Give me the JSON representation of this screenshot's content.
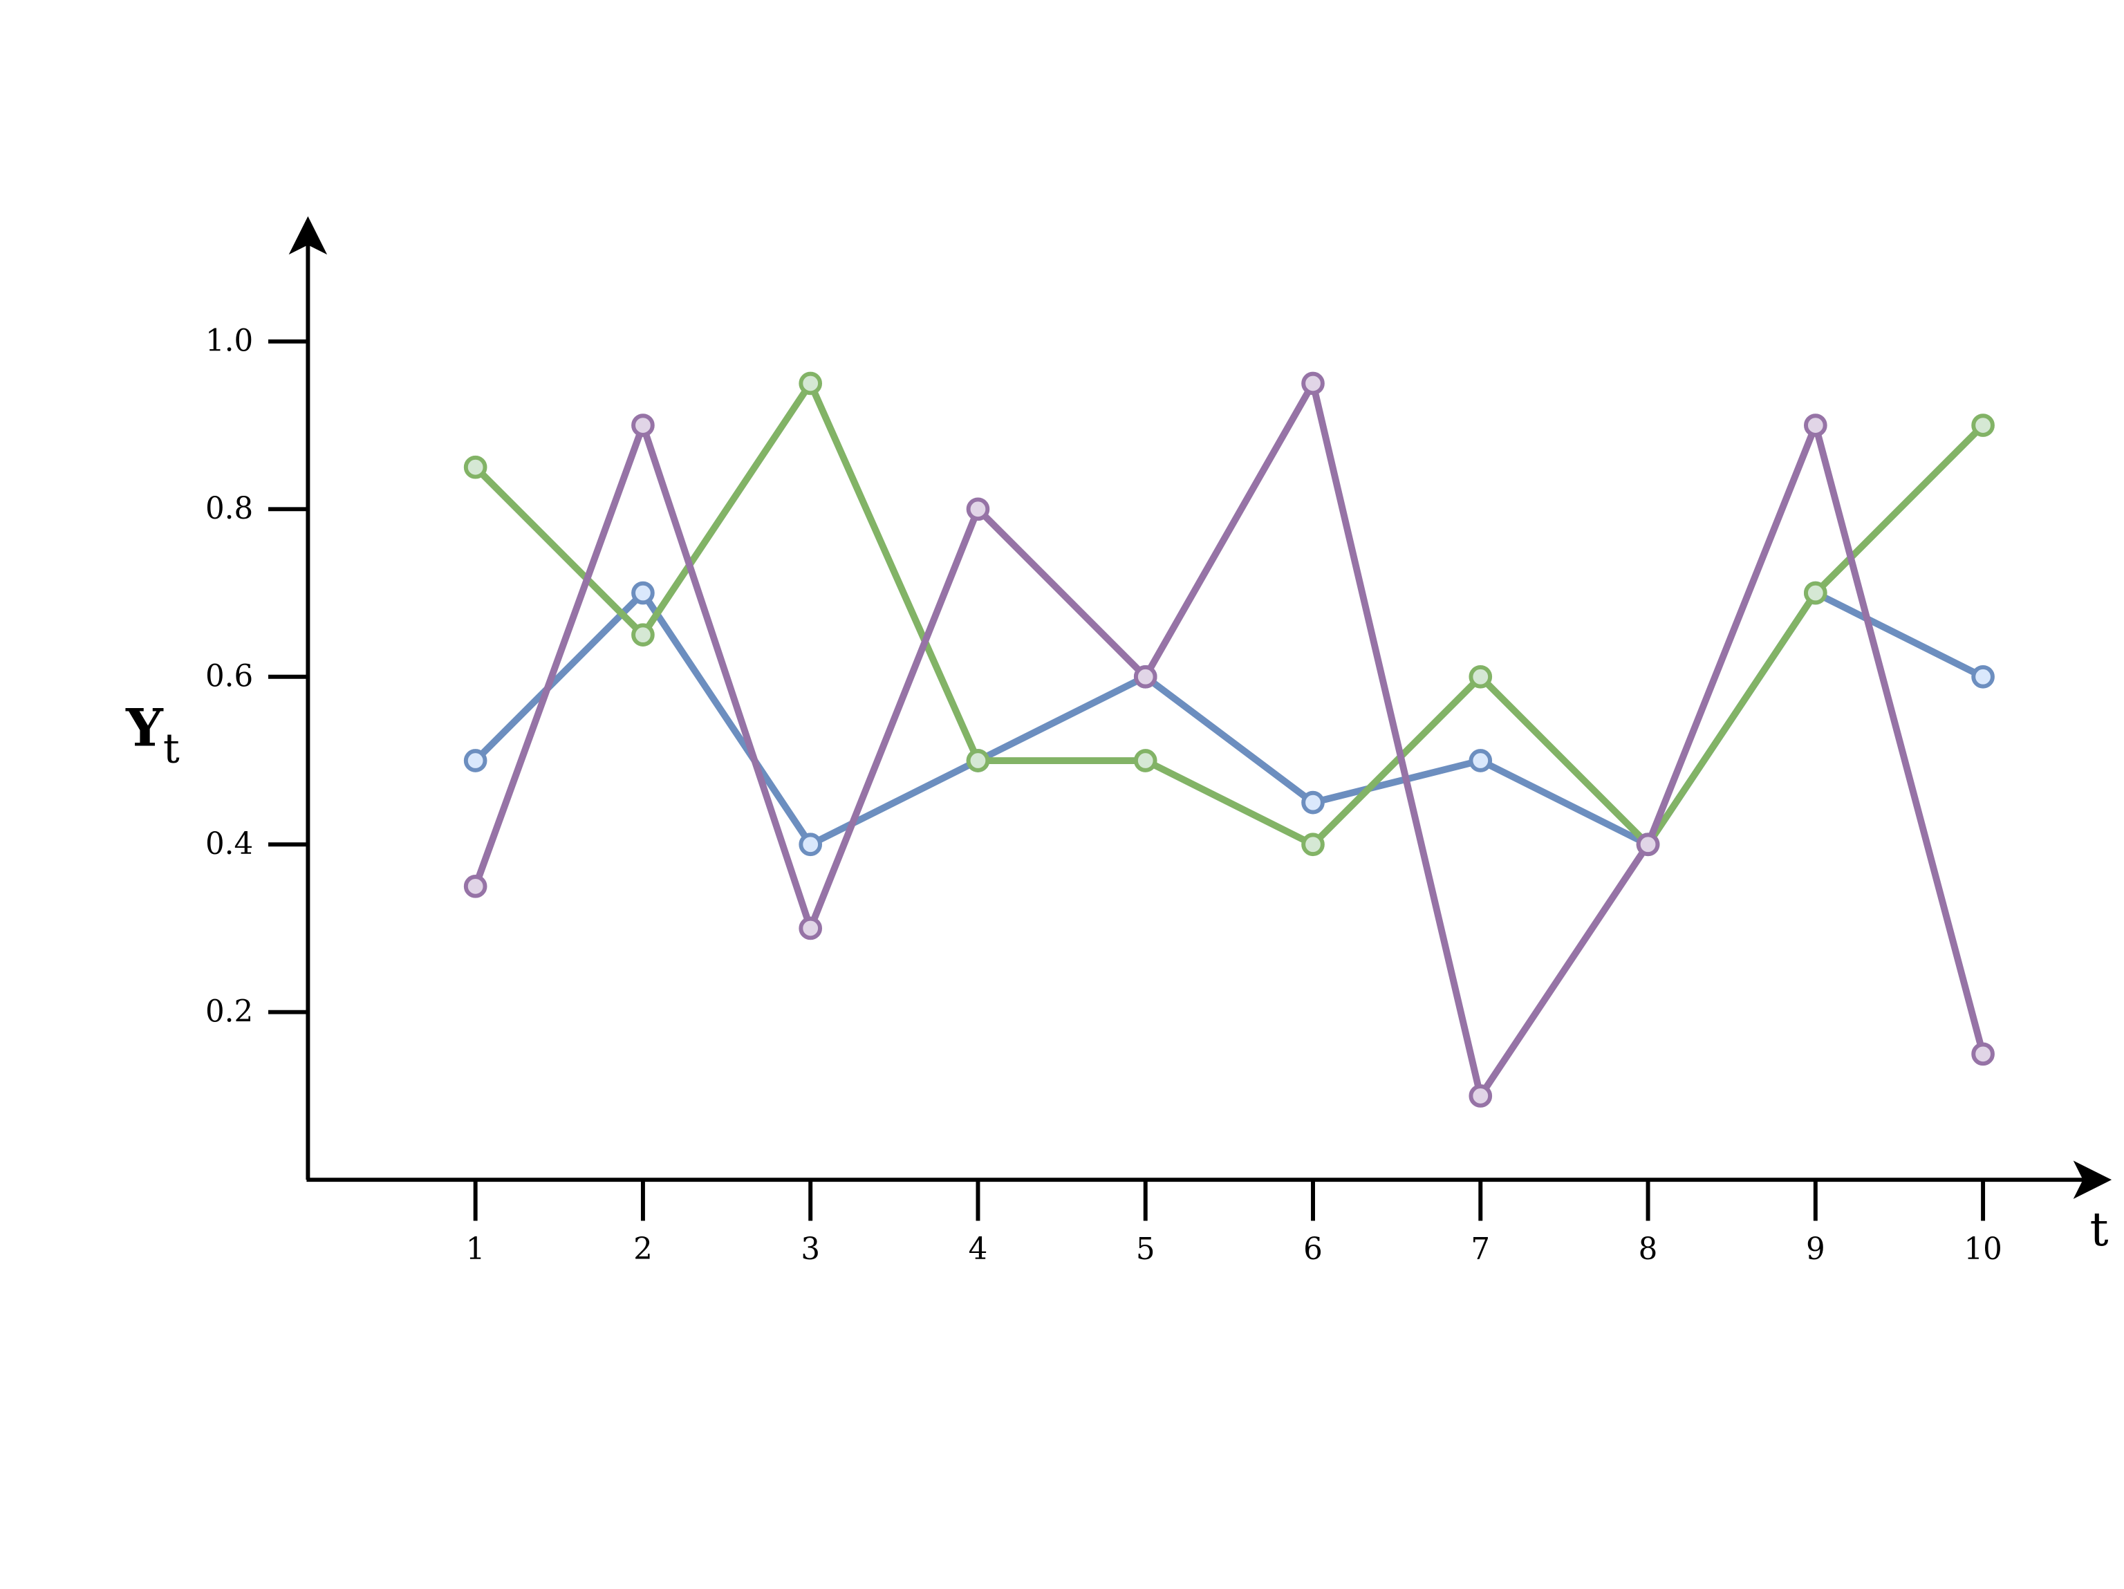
{
  "chart_data": {
    "type": "line",
    "title": "",
    "xlabel": "t",
    "ylabel": "Y",
    "ylabel_subscript": "t",
    "x": [
      1,
      2,
      3,
      4,
      5,
      6,
      7,
      8,
      9,
      10
    ],
    "x_tick_labels": [
      "1",
      "2",
      "3",
      "4",
      "5",
      "6",
      "7",
      "8",
      "9",
      "10"
    ],
    "y_ticks": [
      0.2,
      0.4,
      0.6,
      0.8,
      1.0
    ],
    "y_tick_labels": [
      "0.2",
      "0.4",
      "0.6",
      "0.8",
      "1.0"
    ],
    "xlim": [
      0,
      11.5
    ],
    "ylim": [
      0,
      1.15
    ],
    "grid": false,
    "legend": "none",
    "series": [
      {
        "color": "#6c8ebf",
        "fill": "#dae8fc",
        "values": [
          0.5,
          0.7,
          0.4,
          0.5,
          0.6,
          0.45,
          0.5,
          0.4,
          0.7,
          0.6
        ]
      },
      {
        "color": "#82b366",
        "fill": "#d5e8d4",
        "values": [
          0.85,
          0.65,
          0.95,
          0.5,
          0.5,
          0.4,
          0.6,
          0.4,
          0.7,
          0.9
        ]
      },
      {
        "color": "#9673a6",
        "fill": "#e1d5e7",
        "values": [
          0.35,
          0.9,
          0.3,
          0.8,
          0.6,
          0.95,
          0.1,
          0.4,
          0.9,
          0.15
        ]
      }
    ]
  }
}
